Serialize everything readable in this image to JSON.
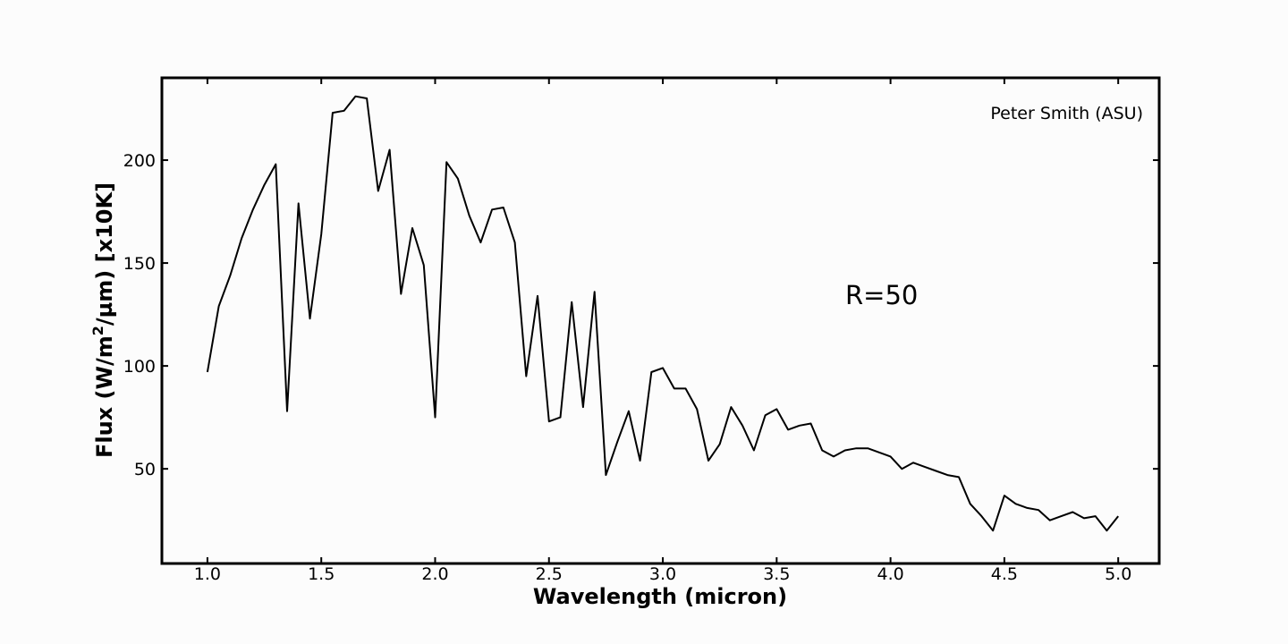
{
  "chart_data": {
    "type": "line",
    "xlabel": "Wavelength (micron)",
    "ylabel_prefix": "Flux (W/m",
    "ylabel_sup": "2",
    "ylabel_suffix": "/µm) [x10K]",
    "annotation_credit": "Peter Smith (ASU)",
    "annotation_resolution": "R=50",
    "xlim": [
      0.8,
      5.18
    ],
    "ylim": [
      4,
      240
    ],
    "xticks": [
      {
        "value": 1.0,
        "label": "1.0"
      },
      {
        "value": 1.5,
        "label": "1.5"
      },
      {
        "value": 2.0,
        "label": "2.0"
      },
      {
        "value": 2.5,
        "label": "2.5"
      },
      {
        "value": 3.0,
        "label": "3.0"
      },
      {
        "value": 3.5,
        "label": "3.5"
      },
      {
        "value": 4.0,
        "label": "4.0"
      },
      {
        "value": 4.5,
        "label": "4.5"
      },
      {
        "value": 5.0,
        "label": "5.0"
      }
    ],
    "yticks": [
      {
        "value": 50,
        "label": "50"
      },
      {
        "value": 100,
        "label": "100"
      },
      {
        "value": 150,
        "label": "150"
      },
      {
        "value": 200,
        "label": "200"
      }
    ],
    "grid": false,
    "line_color": "#000000",
    "series": [
      {
        "x": [
          1.0,
          1.05,
          1.1,
          1.15,
          1.2,
          1.25,
          1.3,
          1.35,
          1.4,
          1.45,
          1.5,
          1.55,
          1.6,
          1.65,
          1.7,
          1.75,
          1.8,
          1.85,
          1.9,
          1.95,
          2.0,
          2.05,
          2.1,
          2.15,
          2.2,
          2.25,
          2.3,
          2.35,
          2.4,
          2.45,
          2.5,
          2.55,
          2.6,
          2.65,
          2.7,
          2.75,
          2.8,
          2.85,
          2.9,
          2.95,
          3.0,
          3.05,
          3.1,
          3.15,
          3.2,
          3.25,
          3.3,
          3.35,
          3.4,
          3.45,
          3.5,
          3.55,
          3.6,
          3.65,
          3.7,
          3.75,
          3.8,
          3.85,
          3.9,
          3.95,
          4.0,
          4.05,
          4.1,
          4.15,
          4.2,
          4.25,
          4.3,
          4.35,
          4.4,
          4.45,
          4.5,
          4.55,
          4.6,
          4.65,
          4.7,
          4.75,
          4.8,
          4.85,
          4.9,
          4.95,
          5.0
        ],
        "y": [
          97,
          129,
          144,
          162,
          176,
          188,
          198,
          78,
          179,
          123,
          164,
          223,
          224,
          231,
          230,
          185,
          205,
          135,
          167,
          149,
          75,
          199,
          191,
          173,
          160,
          176,
          177,
          160,
          95,
          134,
          73,
          75,
          131,
          80,
          136,
          47,
          63,
          78,
          54,
          97,
          99,
          89,
          89,
          79,
          54,
          62,
          80,
          71,
          59,
          76,
          79,
          69,
          71,
          72,
          59,
          56,
          59,
          60,
          60,
          58,
          56,
          50,
          53,
          51,
          49,
          47,
          46,
          33,
          27,
          20,
          37,
          33,
          31,
          30,
          25,
          27,
          29,
          26,
          27,
          20,
          27
        ]
      }
    ]
  }
}
